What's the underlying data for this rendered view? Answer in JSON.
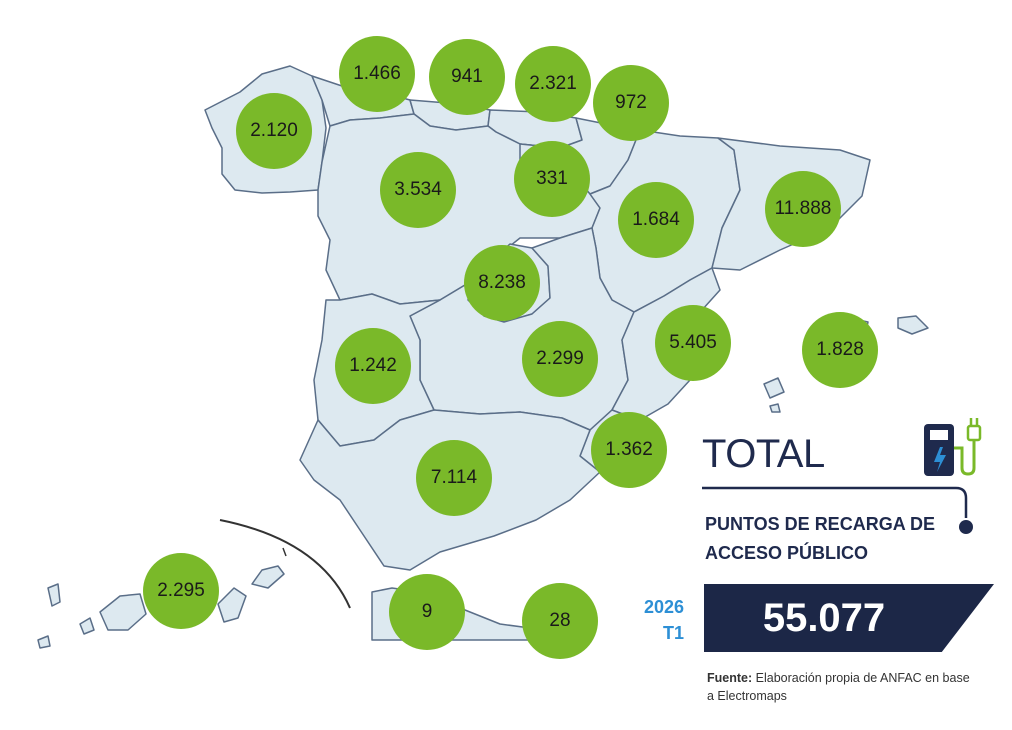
{
  "colors": {
    "land": "#dde9f0",
    "border": "#5a6e88",
    "bubble": "#7ab929",
    "navy": "#1c2747",
    "accent_blue": "#2d8fd5"
  },
  "regions": [
    {
      "id": "galicia",
      "value": "2.120"
    },
    {
      "id": "asturias",
      "value": "1.466"
    },
    {
      "id": "cantabria",
      "value": "941"
    },
    {
      "id": "pais-vasco",
      "value": "2.321"
    },
    {
      "id": "navarra",
      "value": "972"
    },
    {
      "id": "castilla-y-leon",
      "value": "3.534"
    },
    {
      "id": "la-rioja",
      "value": "331"
    },
    {
      "id": "aragon",
      "value": "1.684"
    },
    {
      "id": "cataluna",
      "value": "11.888"
    },
    {
      "id": "madrid",
      "value": "8.238"
    },
    {
      "id": "comunidad-valenciana",
      "value": "5.405"
    },
    {
      "id": "baleares",
      "value": "1.828"
    },
    {
      "id": "extremadura",
      "value": "1.242"
    },
    {
      "id": "castilla-la-mancha",
      "value": "2.299"
    },
    {
      "id": "murcia",
      "value": "1.362"
    },
    {
      "id": "andalucia",
      "value": "7.114"
    },
    {
      "id": "canarias",
      "value": "2.295"
    },
    {
      "id": "ceuta",
      "value": "9"
    },
    {
      "id": "melilla",
      "value": "28"
    }
  ],
  "legend": {
    "title": "TOTAL",
    "subtitle": "PUNTOS DE RECARGA DE ACCESO PÚBLICO",
    "year": "2026",
    "quarter": "T1",
    "total": "55.077",
    "icon": "ev-charger-icon"
  },
  "source": {
    "label": "Fuente:",
    "text": "Elaboración propia de ANFAC en base a Electromaps"
  }
}
